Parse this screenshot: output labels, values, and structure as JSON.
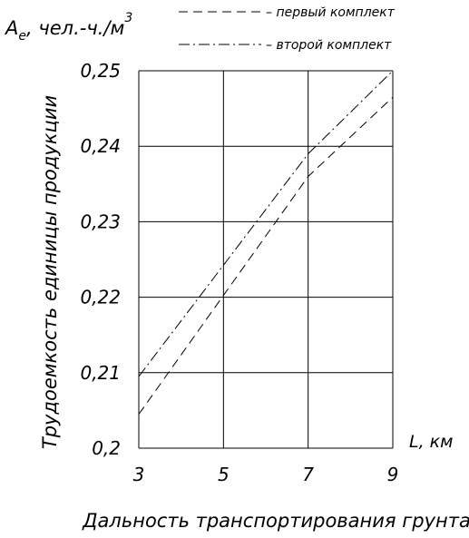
{
  "chart_data": {
    "type": "line",
    "title": "",
    "xlabel": "Дальность транспортирования грунта",
    "ylabel": "Трудоемкость единицы продукции",
    "x_axis_symbol": "L, км",
    "y_axis_symbol": "A",
    "y_axis_symbol_subscript": "е",
    "y_axis_unit": ", чел.-ч./м",
    "y_axis_unit_superscript": "3",
    "xlim": [
      3,
      9
    ],
    "ylim": [
      0.2,
      0.25
    ],
    "x_ticks": [
      3,
      5,
      7,
      9
    ],
    "x_tick_labels": [
      "3",
      "5",
      "7",
      "9"
    ],
    "y_ticks": [
      0.2,
      0.21,
      0.22,
      0.23,
      0.24,
      0.25
    ],
    "y_tick_labels": [
      "0,2",
      "0,21",
      "0,22",
      "0,23",
      "0,24",
      "0,25"
    ],
    "grid": true,
    "legend_position": "top-right",
    "series": [
      {
        "name": "– первый комплект",
        "line_style": "dashed",
        "x": [
          3,
          7,
          9
        ],
        "y": [
          0.2045,
          0.236,
          0.2465
        ]
      },
      {
        "name": "– второй комплект",
        "line_style": "dash-dot",
        "x": [
          3,
          7,
          9
        ],
        "y": [
          0.2095,
          0.239,
          0.25
        ]
      }
    ]
  }
}
